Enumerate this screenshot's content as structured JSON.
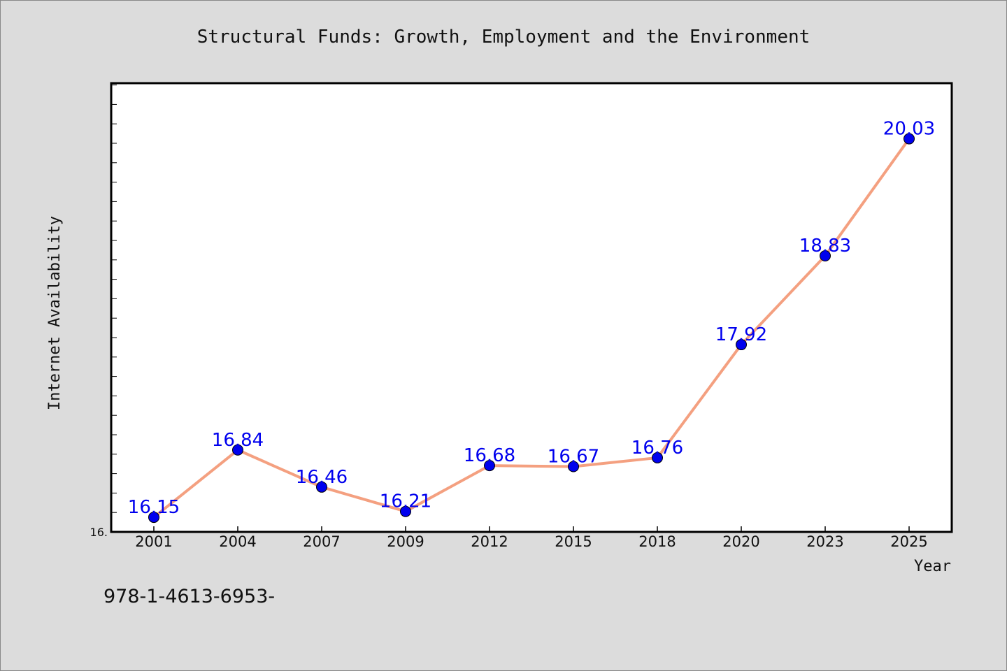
{
  "chart_data": {
    "type": "line",
    "title": "Structural Funds: Growth, Employment and the Environment",
    "xlabel": "Year",
    "ylabel": "Internet Availability",
    "categories": [
      "2001",
      "2004",
      "2007",
      "2009",
      "2012",
      "2015",
      "2018",
      "2020",
      "2023",
      "2025"
    ],
    "series": [
      {
        "values": [
          16.15,
          16.84,
          16.46,
          16.21,
          16.68,
          16.67,
          16.76,
          17.92,
          18.83,
          20.03
        ],
        "labels": [
          "16.15",
          "16.84",
          "16.46",
          "16.21",
          "16.68",
          "16.67",
          "16.76",
          "17.92",
          "18.83",
          "20.03"
        ]
      }
    ],
    "ylim": [
      16.0,
      20.6
    ],
    "yticks": [
      {
        "value": 16.0,
        "label": "16."
      }
    ],
    "grid": false,
    "legend": "none",
    "colors": {
      "line": "#f4a080",
      "marker": "#0000ee",
      "label": "#0000ee",
      "background": "#dcdcdc",
      "plot": "#ffffff"
    }
  },
  "footer": {
    "text": "978-1-4613-6953-"
  }
}
